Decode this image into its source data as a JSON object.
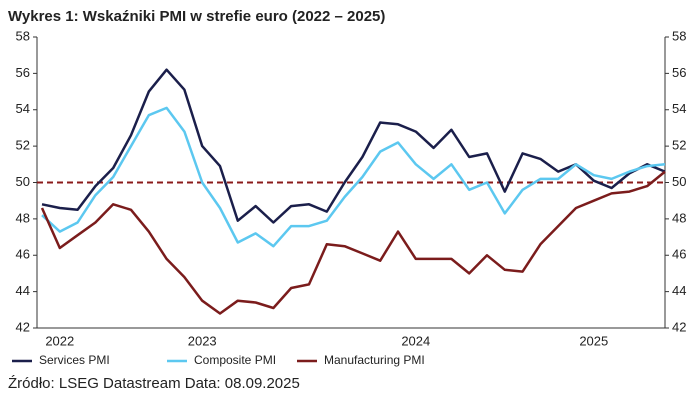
{
  "chart_data": {
    "type": "line",
    "title": "Wykres 1: Wskaźniki PMI w strefie euro (2022 – 2025)",
    "source": "Źródło: LSEG Datastream Data: 08.09.2025",
    "categories": [
      null,
      "2022",
      null,
      null,
      null,
      null,
      null,
      null,
      null,
      "2023",
      null,
      null,
      null,
      null,
      null,
      null,
      null,
      null,
      null,
      null,
      null,
      "2024",
      null,
      null,
      null,
      null,
      null,
      null,
      null,
      null,
      null,
      "2025",
      null,
      null,
      null,
      null
    ],
    "series": [
      {
        "name": "Services PMI",
        "color": "#1b1f4b",
        "values": [
          48.8,
          48.6,
          48.5,
          49.8,
          50.8,
          52.6,
          55.0,
          56.2,
          55.1,
          52.0,
          50.9,
          47.9,
          48.7,
          47.8,
          48.7,
          48.8,
          48.4,
          50.0,
          51.4,
          53.3,
          53.2,
          52.8,
          51.9,
          52.9,
          51.4,
          51.6,
          49.5,
          51.6,
          51.3,
          50.6,
          51.0,
          50.1,
          49.7,
          50.5,
          51.0,
          50.6
        ]
      },
      {
        "name": "Composite PMI",
        "color": "#5cc8f0",
        "values": [
          48.2,
          47.3,
          47.8,
          49.3,
          50.3,
          52.0,
          53.7,
          54.1,
          52.8,
          50.0,
          48.6,
          46.7,
          47.2,
          46.5,
          47.6,
          47.6,
          47.9,
          49.2,
          50.3,
          51.7,
          52.2,
          51.0,
          50.2,
          51.0,
          49.6,
          50.0,
          48.3,
          49.6,
          50.2,
          50.2,
          51.0,
          50.4,
          50.2,
          50.6,
          50.9,
          51.0
        ]
      },
      {
        "name": "Manufacturing PMI",
        "color": "#7b1c1c",
        "values": [
          48.6,
          46.4,
          47.1,
          47.8,
          48.8,
          48.5,
          47.3,
          45.8,
          44.8,
          43.5,
          42.8,
          43.5,
          43.4,
          43.1,
          44.2,
          44.4,
          46.6,
          46.5,
          46.1,
          45.7,
          47.3,
          45.8,
          45.8,
          45.8,
          45.0,
          46.0,
          45.2,
          45.1,
          46.6,
          47.6,
          48.6,
          49.0,
          49.4,
          49.5,
          49.8,
          50.6
        ]
      }
    ],
    "ylim": [
      42,
      58
    ],
    "yticks": [
      42,
      44,
      46,
      48,
      50,
      52,
      54,
      56,
      58
    ],
    "y2lim": [
      42,
      58
    ],
    "y2ticks": [
      42,
      44,
      46,
      48,
      50,
      52,
      54,
      56,
      58
    ],
    "reference_line": {
      "value": 50,
      "color": "#8b1a1a"
    },
    "legend": "bottom"
  }
}
